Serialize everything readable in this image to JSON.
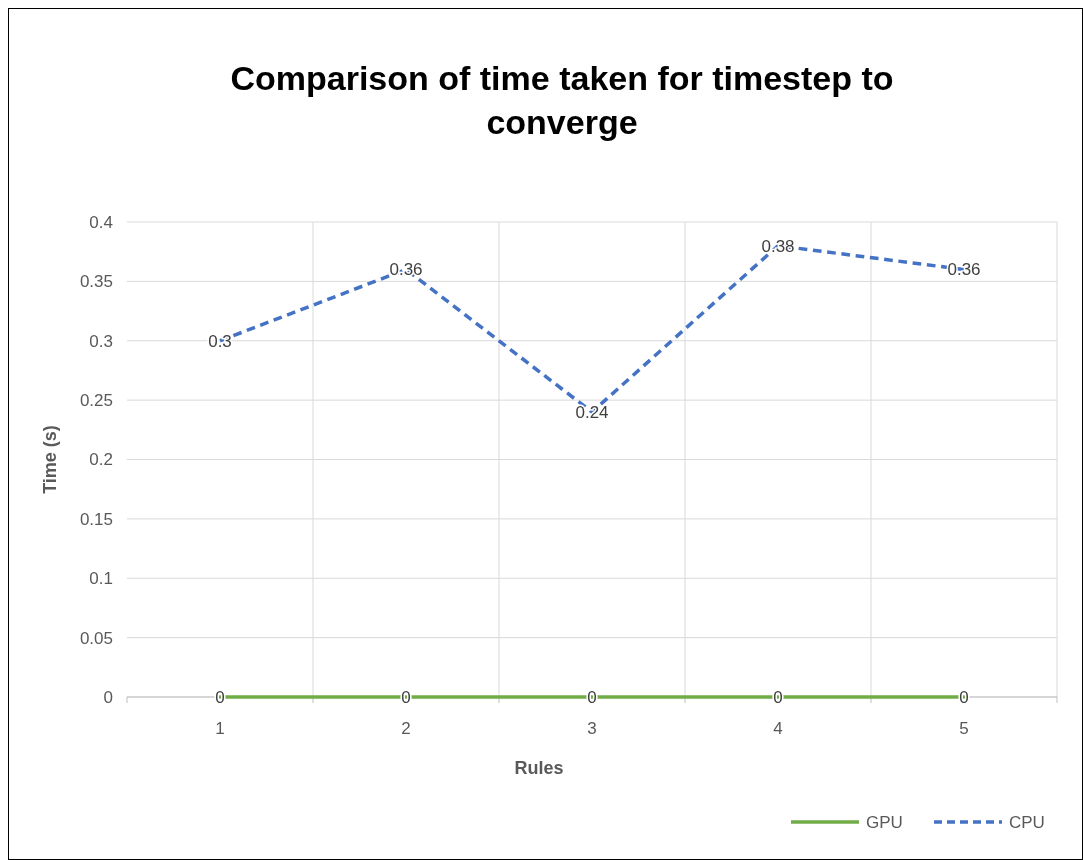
{
  "chart_data": {
    "type": "line",
    "title": "Comparison of time taken for timestep to converge",
    "xlabel": "Rules",
    "ylabel": "Time (s)",
    "categories": [
      "1",
      "2",
      "3",
      "4",
      "5"
    ],
    "series": [
      {
        "name": "GPU",
        "color": "#70ad47",
        "values": [
          0,
          0,
          0,
          0,
          0
        ],
        "line_style": "solid"
      },
      {
        "name": "CPU",
        "color": "#4472c4",
        "values": [
          0.3,
          0.36,
          0.24,
          0.38,
          0.36
        ],
        "line_style": "dashed"
      }
    ],
    "ylim": [
      0,
      0.4
    ],
    "yticks": [
      0,
      0.05,
      0.1,
      0.15,
      0.2,
      0.25,
      0.3,
      0.35,
      0.4
    ],
    "grid": true,
    "legend": "bottom right",
    "data_labels": true,
    "marker": "none"
  }
}
